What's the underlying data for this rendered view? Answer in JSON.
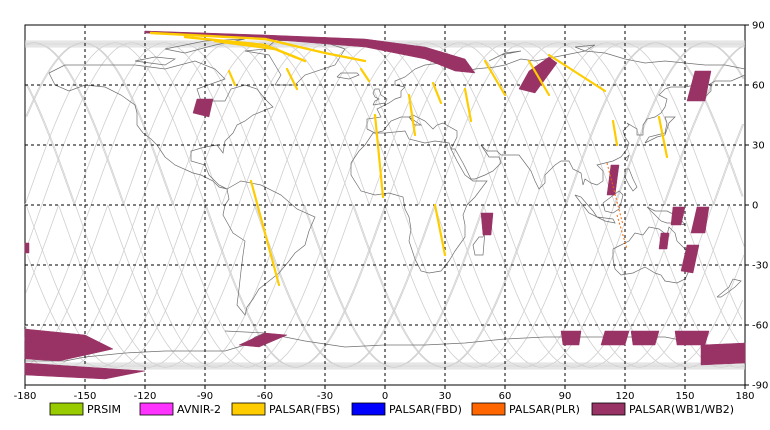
{
  "chart_data": {
    "type": "map",
    "x_ticks": [
      "-180",
      "-150",
      "-120",
      "-90",
      "-60",
      "-30",
      "0",
      "30",
      "60",
      "90",
      "120",
      "150",
      "180"
    ],
    "y_ticks": [
      "90",
      "60",
      "30",
      "0",
      "-30",
      "-60",
      "-90"
    ],
    "xlim": [
      -180,
      180
    ],
    "ylim": [
      -90,
      90
    ],
    "grid": true,
    "legend": [
      {
        "label": "PRSIM",
        "color": "#99cc00"
      },
      {
        "label": "AVNIR-2",
        "color": "#ff33ff"
      },
      {
        "label": "PALSAR(FBS)",
        "color": "#ffcc00"
      },
      {
        "label": "PALSAR(FBD)",
        "color": "#0000ff"
      },
      {
        "label": "PALSAR(PLR)",
        "color": "#ff6600"
      },
      {
        "label": "PALSAR(WB1/WB2)",
        "color": "#993366"
      }
    ],
    "legend_position": "bottom",
    "fbs_strips": [
      [
        [
          -78,
          67
        ],
        [
          -75,
          60
        ]
      ],
      [
        [
          -49,
          68
        ],
        [
          -44,
          58
        ]
      ],
      [
        [
          -67,
          12
        ],
        [
          -53,
          -40
        ]
      ],
      [
        [
          -5,
          45
        ],
        [
          -1,
          4
        ]
      ],
      [
        [
          12,
          55
        ],
        [
          15,
          35
        ]
      ],
      [
        [
          24,
          61
        ],
        [
          28,
          51
        ]
      ],
      [
        [
          25,
          0
        ],
        [
          30,
          -25
        ]
      ],
      [
        [
          40,
          58
        ],
        [
          43,
          42
        ]
      ],
      [
        [
          50,
          72
        ],
        [
          60,
          55
        ]
      ],
      [
        [
          72,
          72
        ],
        [
          82,
          55
        ]
      ],
      [
        [
          82,
          75
        ],
        [
          110,
          57
        ]
      ],
      [
        [
          114,
          42
        ],
        [
          116,
          30
        ]
      ],
      [
        [
          137,
          44
        ],
        [
          141,
          24
        ]
      ],
      [
        [
          -12,
          68
        ],
        [
          -8,
          62
        ]
      ]
    ],
    "fbs_arcs": [
      [
        [
          -117,
          86
        ],
        [
          -60,
          83
        ],
        [
          -30,
          76
        ],
        [
          -10,
          72
        ]
      ],
      [
        [
          -100,
          84
        ],
        [
          -60,
          80
        ],
        [
          -45,
          74
        ]
      ],
      [
        [
          -85,
          82
        ],
        [
          -55,
          78
        ],
        [
          -40,
          72
        ]
      ]
    ],
    "wb_polys": [
      [
        [
          -120,
          87
        ],
        [
          -60,
          85
        ],
        [
          -10,
          83
        ],
        [
          20,
          79
        ],
        [
          40,
          73
        ],
        [
          45,
          66
        ],
        [
          35,
          67
        ],
        [
          20,
          73
        ],
        [
          -10,
          79
        ],
        [
          -60,
          83
        ],
        [
          -120,
          86
        ]
      ],
      [
        [
          -94,
          53
        ],
        [
          -86,
          53
        ],
        [
          -88,
          44
        ],
        [
          -96,
          46
        ]
      ],
      [
        [
          72,
          67
        ],
        [
          82,
          74
        ],
        [
          86,
          71
        ],
        [
          75,
          56
        ],
        [
          67,
          58
        ]
      ],
      [
        [
          155,
          67
        ],
        [
          163,
          67
        ],
        [
          160,
          52
        ],
        [
          151,
          52
        ]
      ],
      [
        [
          113,
          20
        ],
        [
          117,
          20
        ],
        [
          115,
          5
        ],
        [
          111,
          5
        ]
      ],
      [
        [
          48,
          -4
        ],
        [
          54,
          -4
        ],
        [
          53,
          -15
        ],
        [
          49,
          -15
        ]
      ],
      [
        [
          144,
          -1
        ],
        [
          150,
          -1
        ],
        [
          148,
          -10
        ],
        [
          143,
          -10
        ]
      ],
      [
        [
          156,
          -1
        ],
        [
          162,
          -1
        ],
        [
          160,
          -14
        ],
        [
          153,
          -14
        ]
      ],
      [
        [
          151,
          -20
        ],
        [
          157,
          -20
        ],
        [
          154,
          -34
        ],
        [
          148,
          -33
        ]
      ],
      [
        [
          138,
          -14
        ],
        [
          142,
          -14
        ],
        [
          141,
          -22
        ],
        [
          137,
          -22
        ]
      ],
      [
        [
          -60,
          -64
        ],
        [
          -49,
          -65
        ],
        [
          -63,
          -71
        ],
        [
          -73,
          -70
        ]
      ],
      [
        [
          -180,
          -62
        ],
        [
          -150,
          -65
        ],
        [
          -136,
          -72
        ],
        [
          -163,
          -78
        ],
        [
          -180,
          -77
        ]
      ],
      [
        [
          -180,
          -79
        ],
        [
          -120,
          -83
        ],
        [
          -140,
          -87
        ],
        [
          -180,
          -85
        ]
      ],
      [
        [
          -180,
          -66
        ],
        [
          -176,
          -65
        ],
        [
          -178,
          -69
        ],
        [
          -180,
          -68
        ]
      ],
      [
        [
          88,
          -63
        ],
        [
          98,
          -63
        ],
        [
          97,
          -70
        ],
        [
          89,
          -70
        ]
      ],
      [
        [
          110,
          -63
        ],
        [
          122,
          -63
        ],
        [
          120,
          -70
        ],
        [
          108,
          -70
        ]
      ],
      [
        [
          123,
          -63
        ],
        [
          137,
          -63
        ],
        [
          135,
          -70
        ],
        [
          124,
          -70
        ]
      ],
      [
        [
          145,
          -63
        ],
        [
          162,
          -63
        ],
        [
          160,
          -70
        ],
        [
          146,
          -70
        ]
      ],
      [
        [
          158,
          -70
        ],
        [
          180,
          -69
        ],
        [
          180,
          -79
        ],
        [
          158,
          -80
        ]
      ],
      [
        [
          -180,
          -19
        ],
        [
          -178,
          -19
        ],
        [
          -178,
          -24
        ],
        [
          -180,
          -24
        ]
      ]
    ],
    "plr_strips": [
      [
        [
          111,
          21
        ],
        [
          119,
          -10
        ]
      ],
      [
        [
          116,
          -5
        ],
        [
          121,
          -22
        ]
      ]
    ]
  }
}
